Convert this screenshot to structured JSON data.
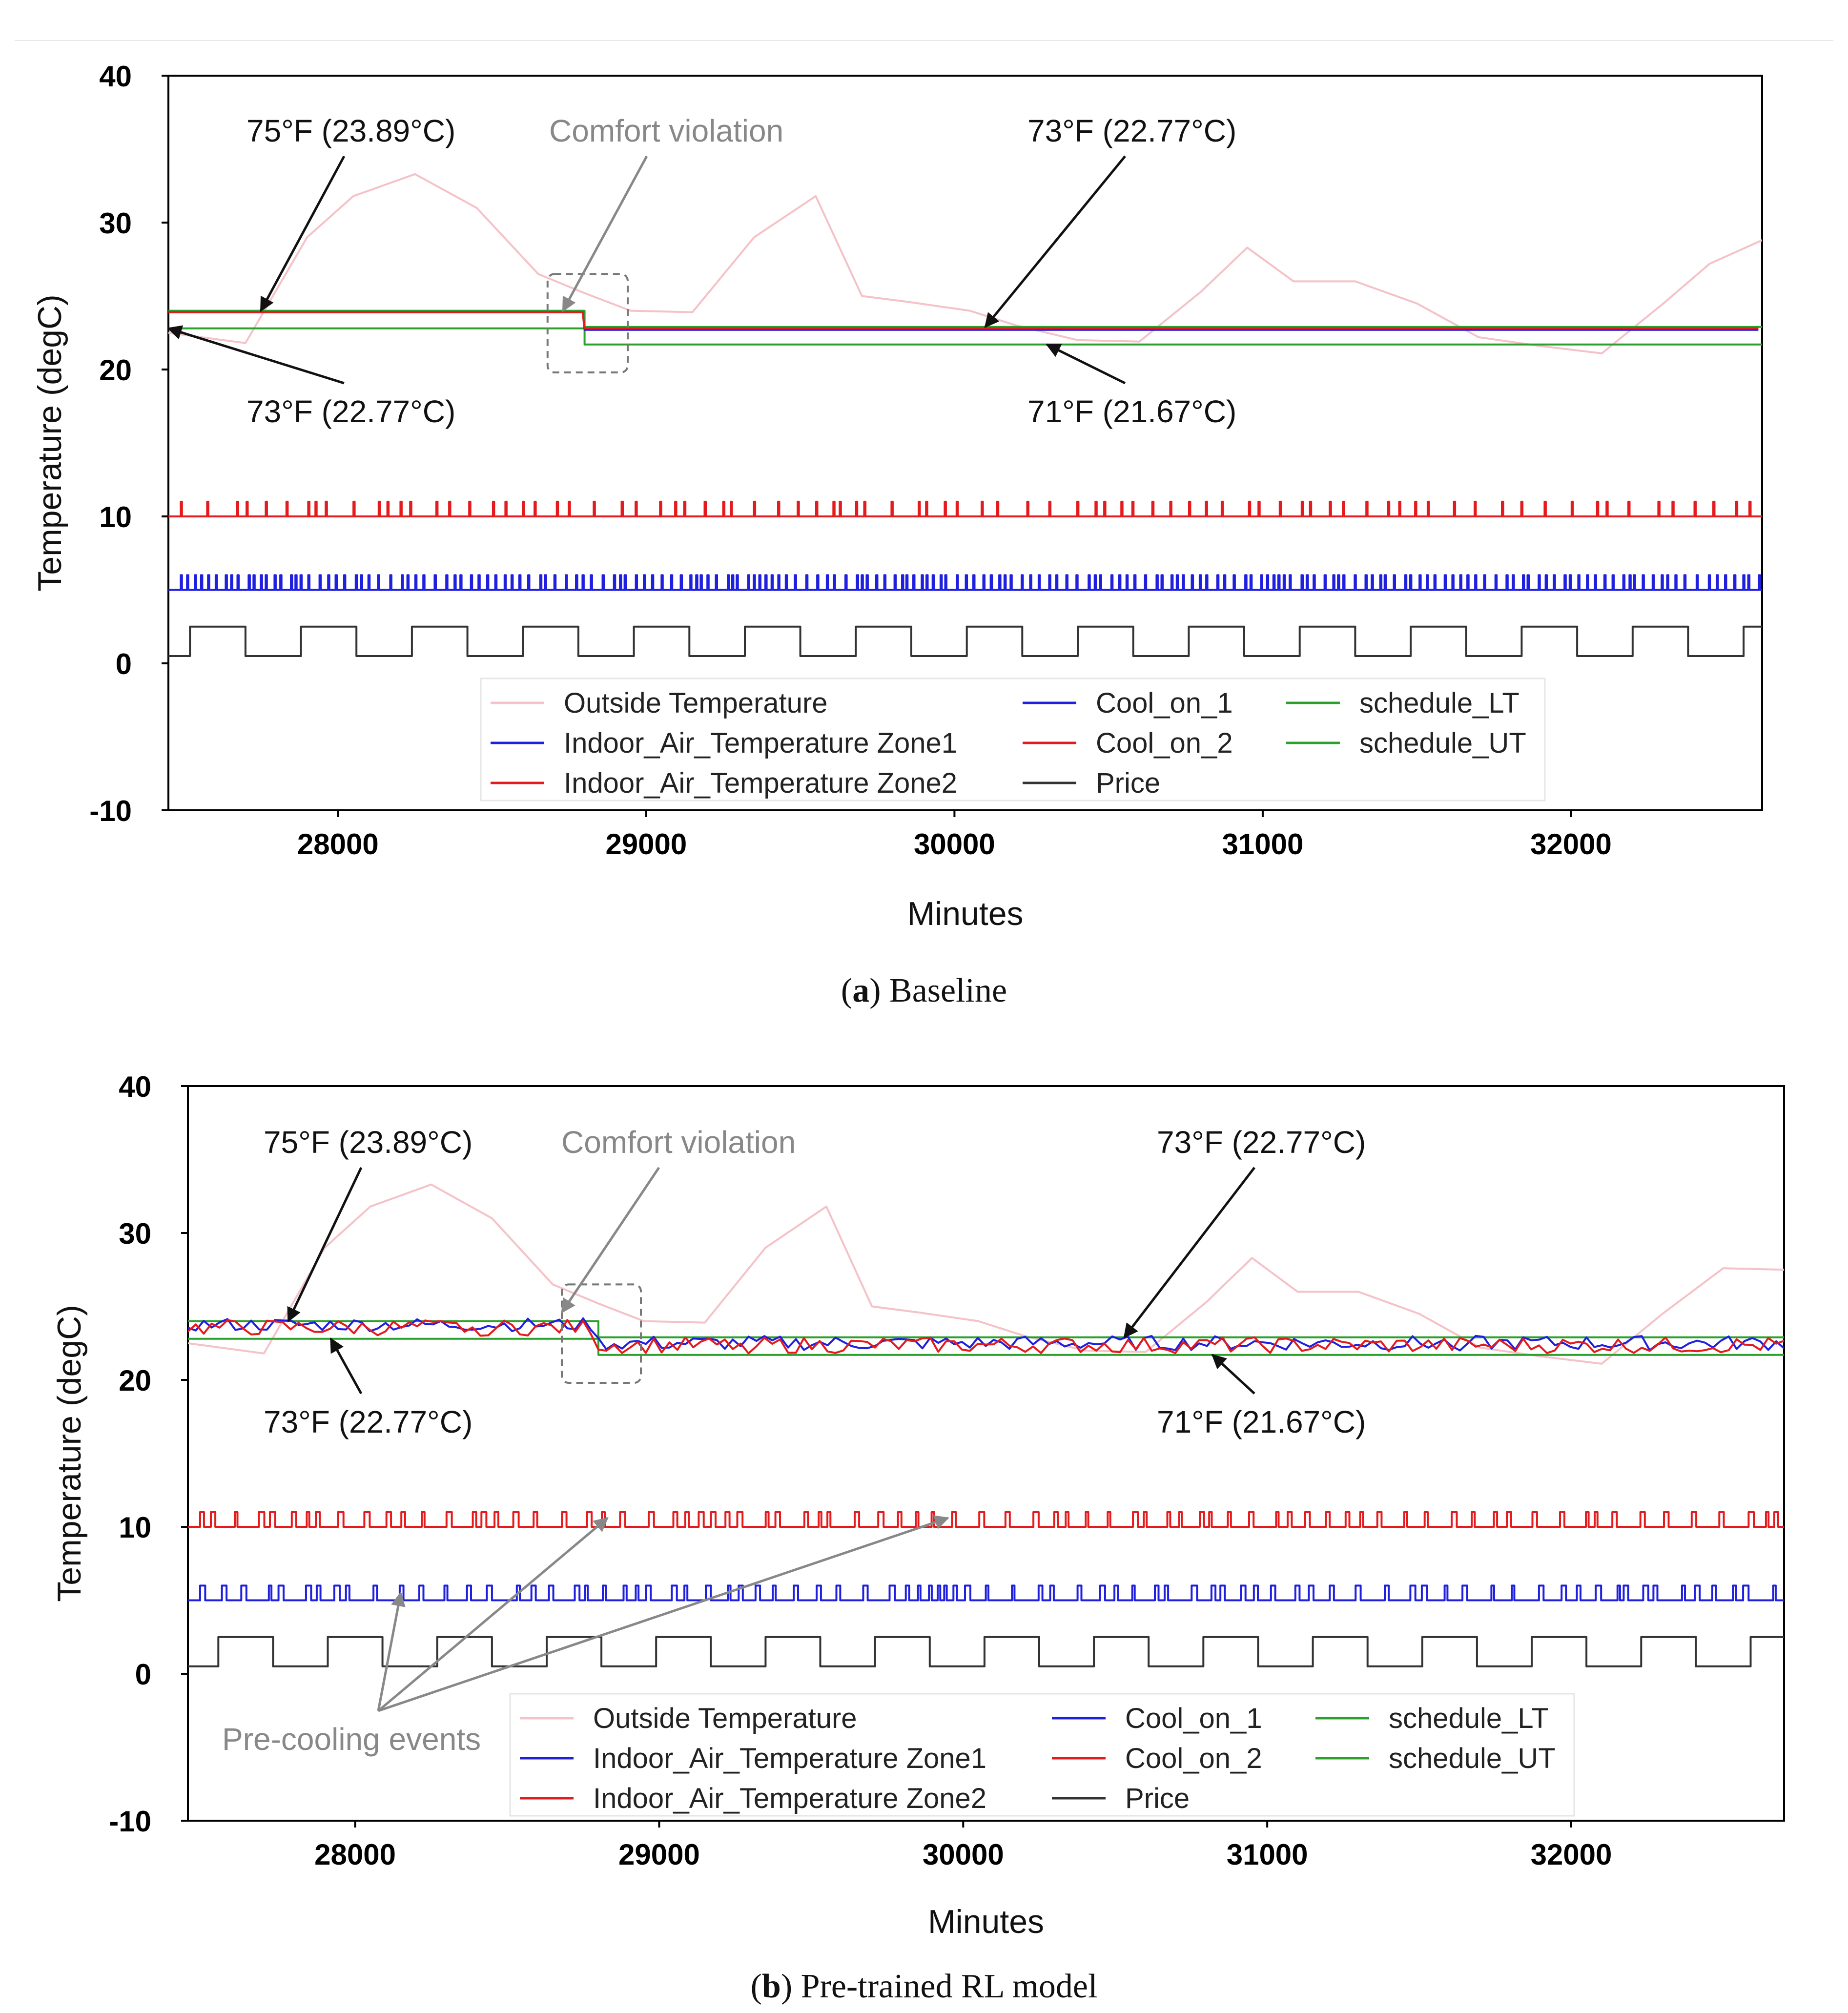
{
  "figure": {
    "caption_a_letter": "a",
    "caption_a_text": "Baseline",
    "caption_b_letter": "b",
    "caption_b_text": "Pre-trained RL model"
  },
  "colors": {
    "outside": "#f4c2c7",
    "zone1": "#1f1fe0",
    "zone2": "#e41a1c",
    "cool1": "#1f1fe0",
    "cool2": "#e41a1c",
    "price": "#333333",
    "schedule": "#2ca02c",
    "annotation_gray": "#888888",
    "annotation_black": "#111111"
  },
  "chart_data": [
    {
      "id": "a",
      "type": "line",
      "title": "",
      "xlabel": "Minutes",
      "ylabel": "Temperature (degC)",
      "xlim": [
        27450,
        32620
      ],
      "ylim": [
        -10,
        40
      ],
      "xticks": [
        28000,
        29000,
        30000,
        31000,
        32000
      ],
      "yticks": [
        -10,
        0,
        10,
        20,
        30,
        40
      ],
      "legend": {
        "placement": "lower-center",
        "entries": [
          {
            "label": "Outside Temperature",
            "color_key": "outside"
          },
          {
            "label": "Indoor_Air_Temperature Zone1",
            "color_key": "zone1"
          },
          {
            "label": "Indoor_Air_Temperature Zone2",
            "color_key": "zone2"
          },
          {
            "label": "Cool_on_1",
            "color_key": "cool1"
          },
          {
            "label": "Cool_on_2",
            "color_key": "cool2"
          },
          {
            "label": "Price",
            "color_key": "price"
          },
          {
            "label": "schedule_LT",
            "color_key": "schedule"
          },
          {
            "label": "schedule_UT",
            "color_key": "schedule"
          }
        ]
      },
      "series": [
        {
          "name": "Outside Temperature",
          "color_key": "outside",
          "x": [
            27450,
            27700,
            27900,
            28050,
            28250,
            28450,
            28650,
            28800,
            28950,
            29150,
            29350,
            29550,
            29700,
            29850,
            30050,
            30200,
            30400,
            30600,
            30800,
            30950,
            31100,
            31300,
            31500,
            31700,
            31900,
            32100,
            32300,
            32450,
            32620
          ],
          "y": [
            22.5,
            21.8,
            29.0,
            31.8,
            33.3,
            31.0,
            26.5,
            25.2,
            24.0,
            23.9,
            29.0,
            31.8,
            25.0,
            24.6,
            24.0,
            23.0,
            22.0,
            21.9,
            25.3,
            28.3,
            26.0,
            26.0,
            24.5,
            22.2,
            21.6,
            21.1,
            24.5,
            27.2,
            28.8
          ]
        },
        {
          "name": "schedule_UT",
          "color_key": "schedule",
          "x": [
            27450,
            28800,
            28800,
            32620
          ],
          "y": [
            24.0,
            24.0,
            22.9,
            22.9
          ]
        },
        {
          "name": "schedule_LT",
          "color_key": "schedule",
          "x": [
            27450,
            28800,
            28800,
            32620
          ],
          "y": [
            22.8,
            22.8,
            21.7,
            21.7
          ]
        },
        {
          "name": "Indoor_Air_Temperature Zone1",
          "color_key": "zone1",
          "pattern": "tight-oscillation",
          "levels": [
            {
              "from": 27450,
              "to": 28800,
              "lo": 23.9,
              "hi": 24.2
            },
            {
              "from": 28800,
              "to": 32620,
              "lo": 22.7,
              "hi": 23.0
            }
          ]
        },
        {
          "name": "Indoor_Air_Temperature Zone2",
          "color_key": "zone2",
          "pattern": "tight-oscillation",
          "levels": [
            {
              "from": 27450,
              "to": 28800,
              "lo": 23.9,
              "hi": 24.2
            },
            {
              "from": 28800,
              "to": 32620,
              "lo": 22.8,
              "hi": 23.1
            }
          ]
        },
        {
          "name": "Cool_on_1",
          "color_key": "cool1",
          "base": 5,
          "on": 6,
          "pattern": "dense-pulses"
        },
        {
          "name": "Cool_on_2",
          "color_key": "cool2",
          "base": 10,
          "on": 11,
          "pattern": "sparse-pulses"
        },
        {
          "name": "Price",
          "color_key": "price",
          "low": 0.5,
          "high": 2.5,
          "x_start": 27450,
          "period": 360,
          "high_from": 27520,
          "high_to": 27700
        }
      ],
      "annotations": [
        {
          "text": "75°F (23.89°C)",
          "color_key": "annotation_black",
          "target": [
            27750,
            24.0
          ]
        },
        {
          "text": "Comfort violation",
          "color_key": "annotation_gray",
          "target": [
            28730,
            24.0
          ]
        },
        {
          "text": "73°F (22.77°C)",
          "color_key": "annotation_black",
          "target": [
            30100,
            22.9
          ]
        },
        {
          "text": "73°F (22.77°C)",
          "color_key": "annotation_black",
          "target": [
            27450,
            22.8
          ]
        },
        {
          "text": "71°F (21.67°C)",
          "color_key": "annotation_black",
          "target": [
            30300,
            21.7
          ]
        }
      ]
    },
    {
      "id": "b",
      "type": "line",
      "title": "",
      "xlabel": "Minutes",
      "ylabel": "Temperature (degC)",
      "xlim": [
        27450,
        32700
      ],
      "ylim": [
        -10,
        40
      ],
      "xticks": [
        28000,
        29000,
        30000,
        31000,
        32000
      ],
      "yticks": [
        -10,
        0,
        10,
        20,
        30,
        40
      ],
      "legend": {
        "placement": "lower-center",
        "entries": [
          {
            "label": "Outside Temperature",
            "color_key": "outside"
          },
          {
            "label": "Indoor_Air_Temperature Zone1",
            "color_key": "zone1"
          },
          {
            "label": "Indoor_Air_Temperature Zone2",
            "color_key": "zone2"
          },
          {
            "label": "Cool_on_1",
            "color_key": "cool1"
          },
          {
            "label": "Cool_on_2",
            "color_key": "cool2"
          },
          {
            "label": "Price",
            "color_key": "price"
          },
          {
            "label": "schedule_LT",
            "color_key": "schedule"
          },
          {
            "label": "schedule_UT",
            "color_key": "schedule"
          }
        ]
      },
      "series": [
        {
          "name": "Outside Temperature",
          "color_key": "outside",
          "x": [
            27450,
            27700,
            27900,
            28050,
            28250,
            28450,
            28650,
            28800,
            28950,
            29150,
            29350,
            29550,
            29700,
            29850,
            30050,
            30200,
            30400,
            30600,
            30800,
            30950,
            31100,
            31300,
            31500,
            31700,
            31900,
            32100,
            32300,
            32500,
            32700
          ],
          "y": [
            22.5,
            21.8,
            29.0,
            31.8,
            33.3,
            31.0,
            26.5,
            25.2,
            24.0,
            23.9,
            29.0,
            31.8,
            25.0,
            24.6,
            24.0,
            23.0,
            22.0,
            21.9,
            25.3,
            28.3,
            26.0,
            26.0,
            24.5,
            22.2,
            21.6,
            21.1,
            24.5,
            27.6,
            27.5
          ]
        },
        {
          "name": "schedule_UT",
          "color_key": "schedule",
          "x": [
            27450,
            28800,
            28800,
            32700
          ],
          "y": [
            24.0,
            24.0,
            22.9,
            22.9
          ]
        },
        {
          "name": "schedule_LT",
          "color_key": "schedule",
          "x": [
            27450,
            28800,
            28800,
            32700
          ],
          "y": [
            22.8,
            22.8,
            21.7,
            21.7
          ]
        },
        {
          "name": "Indoor_Air_Temperature Zone1",
          "color_key": "zone1",
          "pattern": "loose-oscillation",
          "levels": [
            {
              "from": 27450,
              "to": 28800,
              "lo": 23.3,
              "hi": 24.2
            },
            {
              "from": 28800,
              "to": 32700,
              "lo": 22.0,
              "hi": 23.0
            }
          ]
        },
        {
          "name": "Indoor_Air_Temperature Zone2",
          "color_key": "zone2",
          "pattern": "loose-oscillation",
          "levels": [
            {
              "from": 27450,
              "to": 28800,
              "lo": 23.0,
              "hi": 24.1
            },
            {
              "from": 28800,
              "to": 32700,
              "lo": 21.8,
              "hi": 22.9
            }
          ]
        },
        {
          "name": "Cool_on_1",
          "color_key": "cool1",
          "base": 5,
          "on": 6,
          "pattern": "clustered-pulses"
        },
        {
          "name": "Cool_on_2",
          "color_key": "cool2",
          "base": 10,
          "on": 11,
          "pattern": "clustered-pulses"
        },
        {
          "name": "Price",
          "color_key": "price",
          "low": 0.5,
          "high": 2.5,
          "x_start": 27450,
          "period": 360,
          "high_from": 27550,
          "high_to": 27730
        }
      ],
      "annotations": [
        {
          "text": "75°F (23.89°C)",
          "color_key": "annotation_black",
          "target": [
            27780,
            24.0
          ]
        },
        {
          "text": "Comfort violation",
          "color_key": "annotation_gray",
          "target": [
            28680,
            24.6
          ]
        },
        {
          "text": "73°F (22.77°C)",
          "color_key": "annotation_black",
          "target": [
            30530,
            22.9
          ]
        },
        {
          "text": "73°F (22.77°C)",
          "color_key": "annotation_black",
          "target": [
            27920,
            22.8
          ]
        },
        {
          "text": "71°F (21.67°C)",
          "color_key": "annotation_black",
          "target": [
            30820,
            21.7
          ]
        },
        {
          "text": "Pre-cooling events",
          "color_key": "annotation_gray",
          "targets": [
            [
              28150,
              5.5
            ],
            [
              28830,
              10.6
            ],
            [
              29950,
              10.6
            ]
          ]
        }
      ]
    }
  ]
}
